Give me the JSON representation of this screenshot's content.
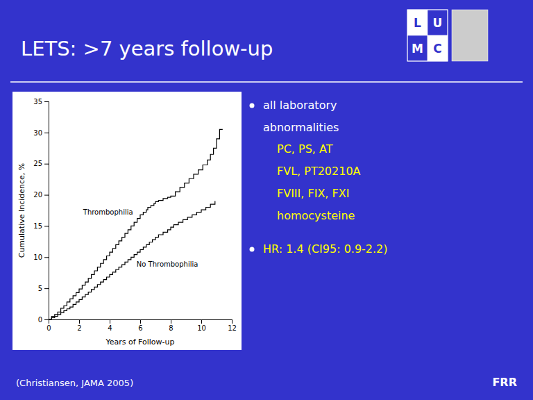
{
  "chart_data": {
    "type": "line",
    "title": "LETS: >7 years follow-up",
    "x_label": "Years of Follow-up",
    "y_label": "Cumulative Incidence, %",
    "line_style": "step",
    "xlim": [
      0,
      12
    ],
    "ylim": [
      0,
      35
    ],
    "xticks": [
      0,
      2,
      4,
      6,
      8,
      10,
      12
    ],
    "yticks": [
      0,
      5,
      10,
      15,
      20,
      25,
      30,
      35
    ],
    "series": [
      {
        "name": "Thrombophilia",
        "color": "#000000",
        "x": [
          0,
          0.2,
          0.4,
          0.6,
          0.8,
          1.0,
          1.2,
          1.4,
          1.6,
          1.8,
          2.0,
          2.2,
          2.4,
          2.6,
          2.8,
          3.0,
          3.2,
          3.4,
          3.6,
          3.8,
          4.0,
          4.2,
          4.4,
          4.6,
          4.8,
          5.0,
          5.2,
          5.4,
          5.6,
          5.8,
          6.0,
          6.2,
          6.4,
          6.5,
          6.7,
          6.9,
          7.0,
          7.2,
          7.5,
          7.8,
          8.0,
          8.3,
          8.6,
          8.9,
          9.2,
          9.5,
          9.8,
          10.1,
          10.4,
          10.6,
          10.8,
          11.0,
          11.2,
          11.4
        ],
        "values": [
          0,
          0.5,
          0.8,
          1.2,
          1.8,
          2.2,
          2.8,
          3.3,
          3.8,
          4.3,
          4.9,
          5.5,
          6.0,
          6.6,
          7.2,
          7.8,
          8.4,
          9.0,
          9.6,
          10.2,
          10.8,
          11.4,
          12.0,
          12.6,
          13.2,
          13.8,
          14.4,
          15.0,
          15.6,
          16.2,
          16.8,
          17.2,
          17.6,
          18.0,
          18.3,
          18.6,
          18.9,
          19.1,
          19.4,
          19.6,
          19.8,
          20.5,
          21.2,
          21.9,
          22.6,
          23.3,
          24.0,
          24.8,
          25.6,
          26.5,
          27.5,
          29.0,
          30.5,
          30.5
        ]
      },
      {
        "name": "No Thrombophilia",
        "color": "#000000",
        "x": [
          0,
          0.2,
          0.4,
          0.6,
          0.8,
          1.0,
          1.2,
          1.4,
          1.6,
          1.8,
          2.0,
          2.2,
          2.4,
          2.6,
          2.8,
          3.0,
          3.2,
          3.4,
          3.6,
          3.8,
          4.0,
          4.2,
          4.4,
          4.6,
          4.8,
          5.0,
          5.2,
          5.4,
          5.6,
          5.8,
          6.0,
          6.2,
          6.4,
          6.6,
          6.8,
          7.0,
          7.2,
          7.5,
          7.8,
          8.0,
          8.2,
          8.5,
          8.8,
          9.1,
          9.4,
          9.7,
          10.0,
          10.3,
          10.6,
          10.9
        ],
        "values": [
          0,
          0.3,
          0.5,
          0.8,
          1.1,
          1.4,
          1.7,
          2.0,
          2.4,
          2.8,
          3.2,
          3.6,
          4.0,
          4.4,
          4.8,
          5.2,
          5.6,
          6.0,
          6.4,
          6.8,
          7.2,
          7.6,
          8.0,
          8.4,
          8.8,
          9.2,
          9.6,
          10.0,
          10.4,
          10.8,
          11.2,
          11.6,
          12.0,
          12.4,
          12.8,
          13.2,
          13.6,
          14.0,
          14.4,
          14.8,
          15.2,
          15.6,
          16.0,
          16.4,
          16.8,
          17.2,
          17.6,
          18.0,
          18.5,
          19.0
        ]
      }
    ],
    "annotations": [
      "(Christiansen, JAMA 2005)",
      "FRR",
      "all laboratory",
      "abnormalities",
      "PC, PS, AT",
      "FVL, PT20210A",
      "FVIII, FIX, FXI",
      "homocysteine",
      "HR: 1.4 (CI95: 0.9-2.2)",
      "L",
      "U",
      "M",
      "C"
    ]
  }
}
